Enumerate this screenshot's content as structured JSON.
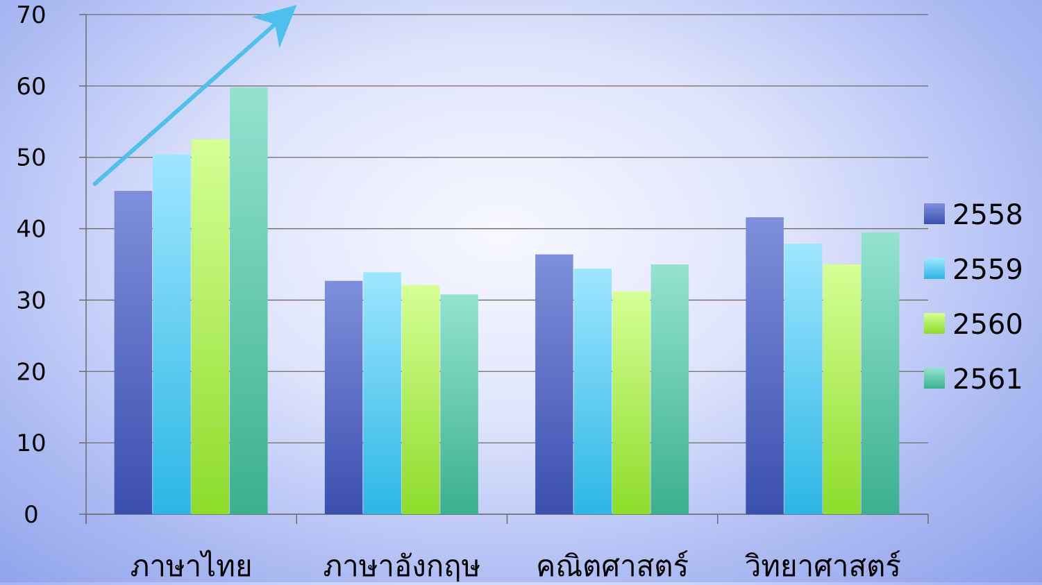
{
  "chart_data": {
    "type": "bar",
    "categories": [
      "ภาษาไทย",
      "ภาษาอังกฤษ",
      "คณิตศาสตร์",
      "วิทยาศาสตร์"
    ],
    "series": [
      {
        "name": "2558",
        "values": [
          45.3,
          32.7,
          36.4,
          41.6
        ],
        "color_top": "#7f8fdc",
        "color_bottom": "#3b4faf"
      },
      {
        "name": "2559",
        "values": [
          50.4,
          33.9,
          34.4,
          37.9
        ],
        "color_top": "#9fe6ff",
        "color_bottom": "#2cb6e6"
      },
      {
        "name": "2560",
        "values": [
          52.5,
          32.1,
          31.2,
          35.0
        ],
        "color_top": "#d6ff95",
        "color_bottom": "#8ddc2b"
      },
      {
        "name": "2561",
        "values": [
          59.8,
          30.8,
          35.0,
          39.5
        ],
        "color_top": "#94e3cf",
        "color_bottom": "#3bb08f"
      }
    ],
    "y_ticks": [
      "0",
      "10",
      "20",
      "30",
      "40",
      "50",
      "60",
      "70"
    ],
    "ylim": [
      0,
      70
    ],
    "grid": true,
    "legend_position": "right",
    "annotation": {
      "type": "arrow",
      "color": "#4fc0ee",
      "from": {
        "category": 0,
        "value": 45.5
      },
      "to": {
        "category": 0.9,
        "value": 69.8
      }
    }
  }
}
